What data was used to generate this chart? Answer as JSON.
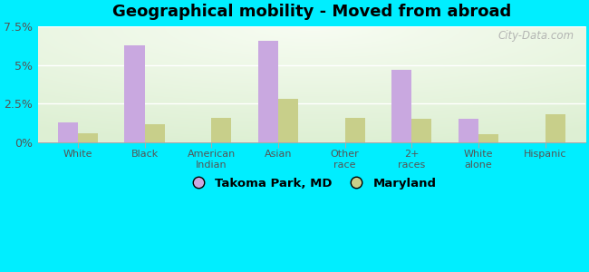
{
  "title": "Geographical mobility - Moved from abroad",
  "categories": [
    "White",
    "Black",
    "American\nIndian",
    "Asian",
    "Other\nrace",
    "2+\nraces",
    "White\nalone",
    "Hispanic"
  ],
  "takoma_values": [
    1.3,
    6.3,
    0.0,
    6.6,
    0.0,
    4.7,
    1.5,
    0.0
  ],
  "maryland_values": [
    0.6,
    1.2,
    1.6,
    2.8,
    1.6,
    1.5,
    0.5,
    1.8
  ],
  "takoma_color": "#c9a8e0",
  "maryland_color": "#c8cf8a",
  "bg_color": "#00eeff",
  "ylim": [
    0,
    7.5
  ],
  "yticks": [
    0,
    2.5,
    5.0,
    7.5
  ],
  "ytick_labels": [
    "0%",
    "2.5%",
    "5%",
    "7.5%"
  ],
  "legend_label1": "Takoma Park, MD",
  "legend_label2": "Maryland",
  "watermark": "City-Data.com",
  "bar_width": 0.3,
  "grid_color": "#dddddd",
  "tick_color": "#888888",
  "label_color": "#555555"
}
